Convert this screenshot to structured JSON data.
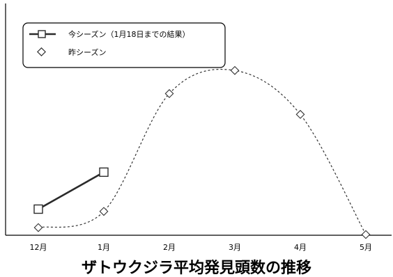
{
  "chart_data": {
    "type": "line",
    "title": "ザトウクジラ平均発見頭数の推移",
    "categories": [
      "12月",
      "1月",
      "2月",
      "3月",
      "4月",
      "5月"
    ],
    "ylim": [
      0,
      10
    ],
    "grid": false,
    "legend_position": "top-left",
    "series": [
      {
        "name": "今シーズン（1月18日までの結果）",
        "marker": "square",
        "line_style": "solid",
        "color": "#2a2a2a",
        "values": [
          1.1,
          2.7,
          null,
          null,
          null,
          null
        ]
      },
      {
        "name": "昨シーズン",
        "marker": "diamond",
        "line_style": "dotted",
        "color": "#333333",
        "values": [
          0.3,
          1.0,
          6.1,
          7.1,
          5.2,
          0.0
        ]
      }
    ]
  }
}
